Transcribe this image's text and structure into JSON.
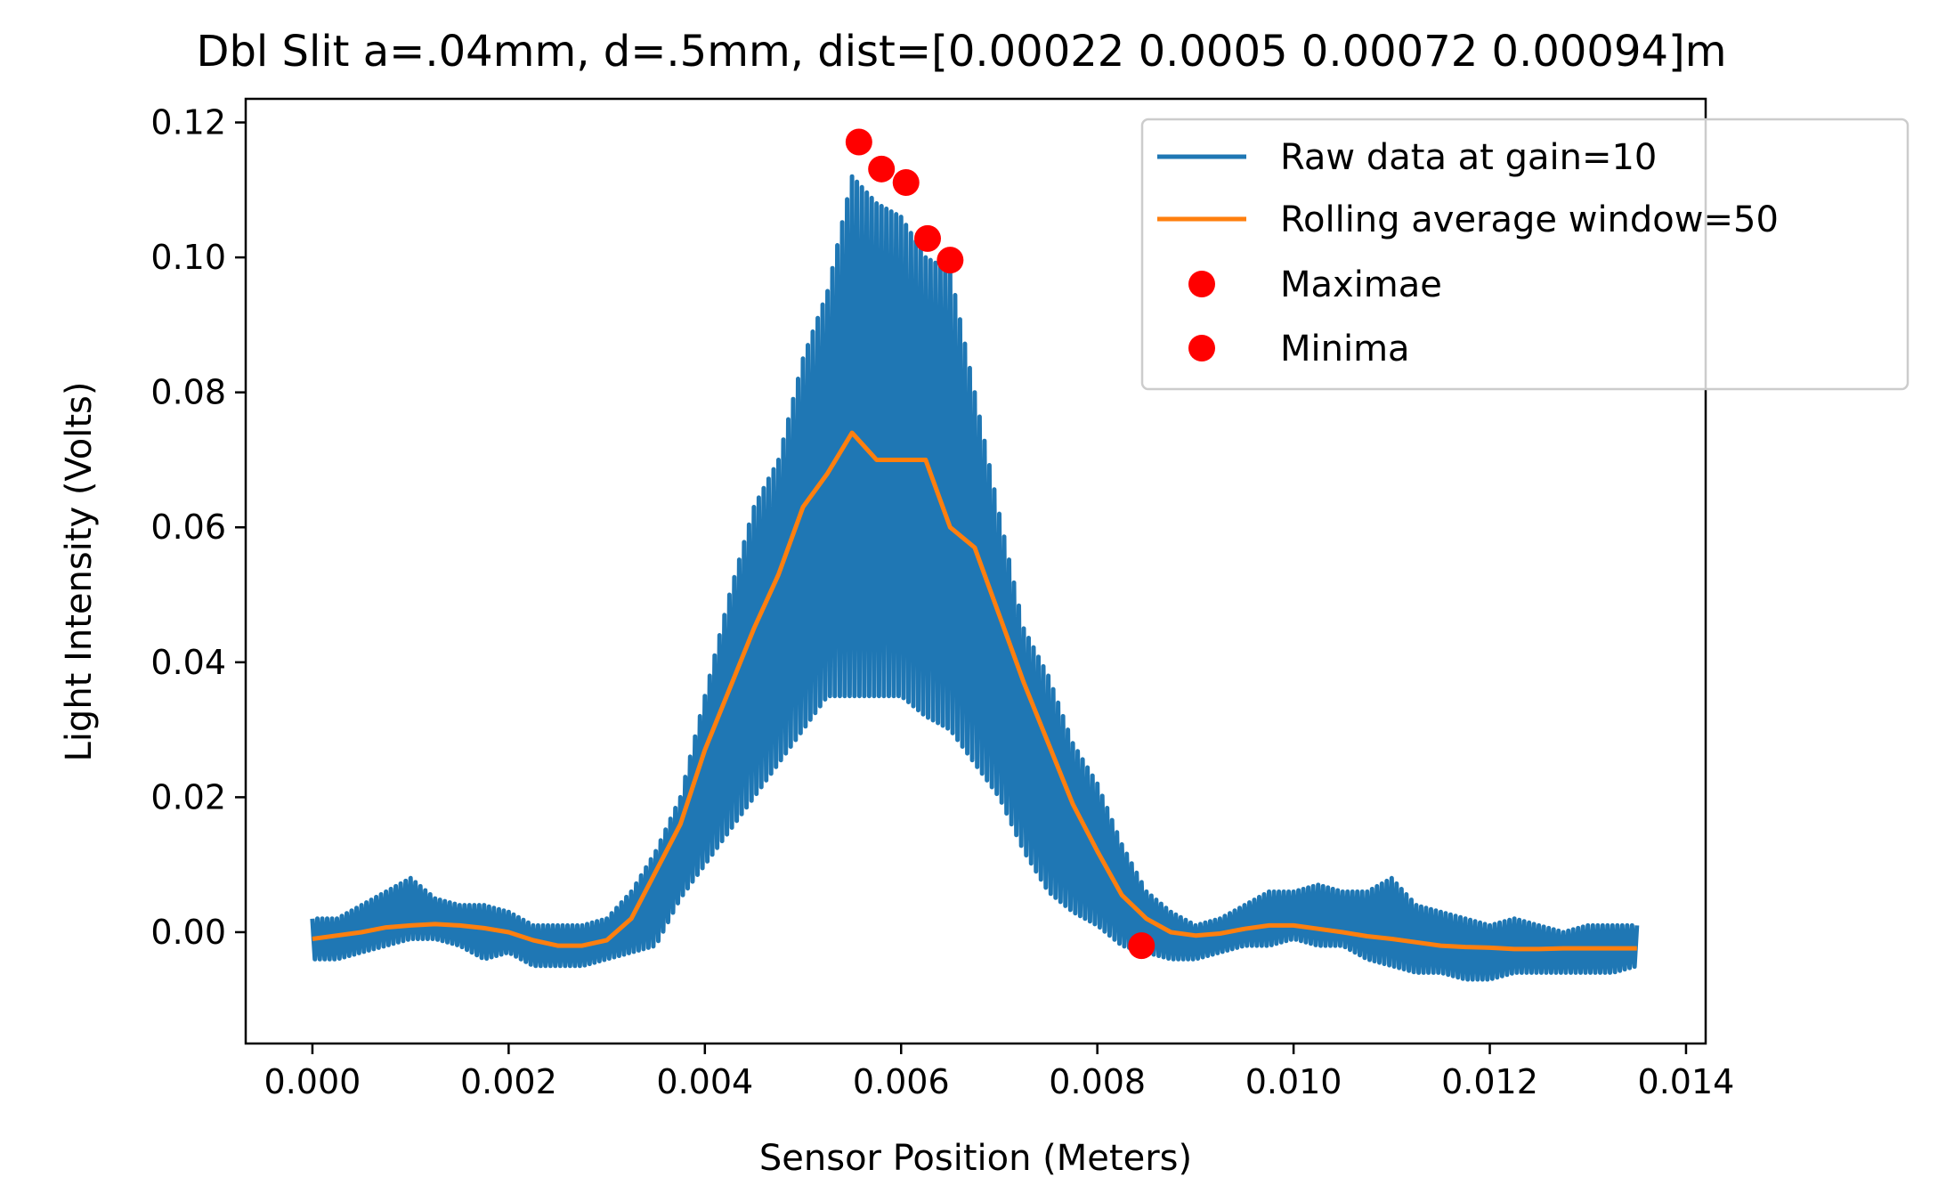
{
  "chart_data": {
    "type": "line",
    "title": "Dbl Slit a=.04mm, d=.5mm, dist=[0.00022 0.0005  0.00072 0.00094]m",
    "xlabel": "Sensor Position (Meters)",
    "ylabel": "Light Intensity (Volts)",
    "xlim": [
      -0.00068,
      0.0142
    ],
    "ylim": [
      -0.0165,
      0.1235
    ],
    "xticks": [
      0.0,
      0.002,
      0.004,
      0.006,
      0.008,
      0.01,
      0.012,
      0.014
    ],
    "xtick_labels": [
      "0.000",
      "0.002",
      "0.004",
      "0.006",
      "0.008",
      "0.010",
      "0.012",
      "0.014"
    ],
    "yticks": [
      0.0,
      0.02,
      0.04,
      0.06,
      0.08,
      0.1,
      0.12
    ],
    "ytick_labels": [
      "0.00",
      "0.02",
      "0.04",
      "0.06",
      "0.08",
      "0.10",
      "0.12"
    ],
    "grid": false,
    "legend_position": "top-right",
    "series": [
      {
        "name": "Raw data at gain=10",
        "kind": "line",
        "color": "#1f77b4",
        "x": [
          0.0,
          0.00025,
          0.0005,
          0.00075,
          0.001,
          0.00125,
          0.0015,
          0.00175,
          0.002,
          0.00225,
          0.0025,
          0.00275,
          0.003,
          0.00325,
          0.0035,
          0.00375,
          0.004,
          0.00425,
          0.0045,
          0.00475,
          0.005,
          0.00525,
          0.0055,
          0.00575,
          0.006,
          0.00625,
          0.0065,
          0.00675,
          0.007,
          0.00725,
          0.0075,
          0.00775,
          0.008,
          0.00825,
          0.0085,
          0.00875,
          0.009,
          0.00925,
          0.0095,
          0.00975,
          0.01,
          0.01025,
          0.0105,
          0.01075,
          0.011,
          0.01125,
          0.0115,
          0.01175,
          0.012,
          0.01225,
          0.0125,
          0.01275,
          0.013,
          0.01325,
          0.0135
        ],
        "upper": [
          0.002,
          0.002,
          0.004,
          0.006,
          0.008,
          0.005,
          0.004,
          0.004,
          0.003,
          0.001,
          0.001,
          0.001,
          0.002,
          0.006,
          0.012,
          0.02,
          0.035,
          0.05,
          0.063,
          0.07,
          0.085,
          0.095,
          0.112,
          0.108,
          0.106,
          0.1,
          0.098,
          0.08,
          0.062,
          0.045,
          0.038,
          0.028,
          0.022,
          0.013,
          0.006,
          0.003,
          0.001,
          0.002,
          0.004,
          0.006,
          0.006,
          0.007,
          0.006,
          0.006,
          0.008,
          0.004,
          0.003,
          0.002,
          0.001,
          0.002,
          0.001,
          0.0,
          0.001,
          0.001,
          0.001
        ],
        "lower": [
          -0.004,
          -0.004,
          -0.003,
          -0.002,
          -0.001,
          -0.001,
          -0.002,
          -0.004,
          -0.003,
          -0.005,
          -0.005,
          -0.005,
          -0.004,
          -0.003,
          -0.002,
          0.005,
          0.01,
          0.015,
          0.02,
          0.025,
          0.03,
          0.035,
          0.035,
          0.035,
          0.035,
          0.032,
          0.03,
          0.025,
          0.02,
          0.012,
          0.006,
          0.003,
          0.001,
          -0.002,
          -0.003,
          -0.004,
          -0.004,
          -0.003,
          -0.002,
          -0.002,
          -0.001,
          -0.002,
          -0.002,
          -0.004,
          -0.005,
          -0.006,
          -0.006,
          -0.007,
          -0.007,
          -0.006,
          -0.006,
          -0.006,
          -0.006,
          -0.006,
          -0.005
        ]
      },
      {
        "name": "Rolling average window=50",
        "kind": "line",
        "color": "#ff7f0e",
        "x": [
          0.0,
          0.00025,
          0.0005,
          0.00075,
          0.001,
          0.00125,
          0.0015,
          0.00175,
          0.002,
          0.00225,
          0.0025,
          0.00275,
          0.003,
          0.00325,
          0.0035,
          0.00375,
          0.004,
          0.00425,
          0.0045,
          0.00475,
          0.005,
          0.00525,
          0.0055,
          0.00575,
          0.006,
          0.00625,
          0.0065,
          0.00675,
          0.007,
          0.00725,
          0.0075,
          0.00775,
          0.008,
          0.00825,
          0.0085,
          0.00875,
          0.009,
          0.00925,
          0.0095,
          0.00975,
          0.01,
          0.01025,
          0.0105,
          0.01075,
          0.011,
          0.01125,
          0.0115,
          0.01175,
          0.012,
          0.01225,
          0.0125,
          0.01275,
          0.013,
          0.01325,
          0.0135
        ],
        "y": [
          -0.001,
          -0.0005,
          0.0,
          0.0007,
          0.001,
          0.0012,
          0.001,
          0.0006,
          0.0,
          -0.0012,
          -0.002,
          -0.002,
          -0.0012,
          0.002,
          0.009,
          0.016,
          0.027,
          0.036,
          0.045,
          0.053,
          0.063,
          0.068,
          0.074,
          0.07,
          0.07,
          0.07,
          0.06,
          0.057,
          0.047,
          0.037,
          0.028,
          0.019,
          0.012,
          0.0055,
          0.002,
          0.0,
          -0.0005,
          -0.0002,
          0.0005,
          0.001,
          0.001,
          0.0005,
          0.0,
          -0.0006,
          -0.001,
          -0.0015,
          -0.002,
          -0.0022,
          -0.0023,
          -0.0025,
          -0.0025,
          -0.0024,
          -0.0024,
          -0.0024,
          -0.0024
        ]
      },
      {
        "name": "Maximae",
        "kind": "points",
        "color": "#ff0000",
        "x": [
          0.00557,
          0.0058,
          0.00605,
          0.00627,
          0.0065
        ],
        "y": [
          0.1171,
          0.1131,
          0.1111,
          0.1028,
          0.0996
        ]
      },
      {
        "name": "Minima",
        "kind": "points",
        "color": "#ff0000",
        "x": [
          0.00845
        ],
        "y": [
          -0.002
        ]
      }
    ]
  }
}
